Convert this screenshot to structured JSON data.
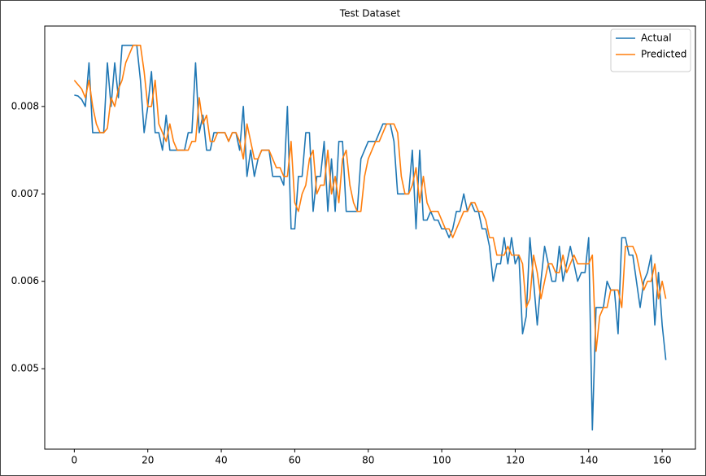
{
  "chart_data": {
    "type": "line",
    "title": "Test Dataset",
    "x": [
      0,
      1,
      2,
      3,
      4,
      5,
      6,
      7,
      8,
      9,
      10,
      11,
      12,
      13,
      14,
      15,
      16,
      17,
      18,
      19,
      20,
      21,
      22,
      23,
      24,
      25,
      26,
      27,
      28,
      29,
      30,
      31,
      32,
      33,
      34,
      35,
      36,
      37,
      38,
      39,
      40,
      41,
      42,
      43,
      44,
      45,
      46,
      47,
      48,
      49,
      50,
      51,
      52,
      53,
      54,
      55,
      56,
      57,
      58,
      59,
      60,
      61,
      62,
      63,
      64,
      65,
      66,
      67,
      68,
      69,
      70,
      71,
      72,
      73,
      74,
      75,
      76,
      77,
      78,
      79,
      80,
      81,
      82,
      83,
      84,
      85,
      86,
      87,
      88,
      89,
      90,
      91,
      92,
      93,
      94,
      95,
      96,
      97,
      98,
      99,
      100,
      101,
      102,
      103,
      104,
      105,
      106,
      107,
      108,
      109,
      110,
      111,
      112,
      113,
      114,
      115,
      116,
      117,
      118,
      119,
      120,
      121,
      122,
      123,
      124,
      125,
      126,
      127,
      128,
      129,
      130,
      131,
      132,
      133,
      134,
      135,
      136,
      137,
      138,
      139,
      140,
      141,
      142,
      143,
      144,
      145,
      146,
      147,
      148,
      149,
      150,
      151,
      152,
      153,
      154,
      155,
      156,
      157,
      158,
      159,
      160,
      161
    ],
    "series": [
      {
        "name": "Actual",
        "color": "#1f77b4",
        "values": [
          0.00813,
          0.00812,
          0.00808,
          0.008,
          0.0085,
          0.0077,
          0.0077,
          0.0077,
          0.0077,
          0.0085,
          0.008,
          0.0085,
          0.0081,
          0.0087,
          0.0087,
          0.0087,
          0.0087,
          0.0087,
          0.0083,
          0.0077,
          0.008,
          0.0084,
          0.0077,
          0.0077,
          0.0075,
          0.0079,
          0.0075,
          0.0075,
          0.0075,
          0.0075,
          0.0075,
          0.0077,
          0.0077,
          0.0085,
          0.0077,
          0.0079,
          0.0075,
          0.0075,
          0.0077,
          0.0077,
          0.0077,
          0.0077,
          0.0076,
          0.0077,
          0.0077,
          0.0075,
          0.008,
          0.0072,
          0.0075,
          0.0072,
          0.0074,
          0.0075,
          0.0075,
          0.0075,
          0.0072,
          0.0072,
          0.0072,
          0.0071,
          0.008,
          0.0066,
          0.0066,
          0.0072,
          0.0072,
          0.0077,
          0.0077,
          0.0068,
          0.0072,
          0.0072,
          0.0076,
          0.0068,
          0.0074,
          0.0068,
          0.0076,
          0.0076,
          0.0068,
          0.0068,
          0.0068,
          0.0068,
          0.0074,
          0.0075,
          0.0076,
          0.0076,
          0.0076,
          0.0077,
          0.0078,
          0.0078,
          0.0078,
          0.0076,
          0.007,
          0.007,
          0.007,
          0.007,
          0.0075,
          0.0066,
          0.0075,
          0.0067,
          0.0067,
          0.0068,
          0.0067,
          0.0067,
          0.0066,
          0.0066,
          0.0065,
          0.0066,
          0.0068,
          0.0068,
          0.007,
          0.0068,
          0.0069,
          0.0068,
          0.0068,
          0.0066,
          0.0066,
          0.0064,
          0.006,
          0.0062,
          0.0062,
          0.0065,
          0.0062,
          0.0065,
          0.0062,
          0.0063,
          0.0054,
          0.0056,
          0.0065,
          0.006,
          0.0055,
          0.006,
          0.0064,
          0.0062,
          0.006,
          0.006,
          0.0064,
          0.006,
          0.0062,
          0.0064,
          0.0062,
          0.006,
          0.0061,
          0.0061,
          0.0065,
          0.0043,
          0.0057,
          0.0057,
          0.0057,
          0.006,
          0.0059,
          0.0059,
          0.0054,
          0.0065,
          0.0065,
          0.0063,
          0.0063,
          0.006,
          0.0057,
          0.006,
          0.0061,
          0.0063,
          0.0055,
          0.0061,
          0.0055,
          0.0051
        ]
      },
      {
        "name": "Predicted",
        "color": "#ff7f0e",
        "values": [
          0.0083,
          0.00825,
          0.0082,
          0.0081,
          0.0083,
          0.008,
          0.0078,
          0.0077,
          0.0077,
          0.00775,
          0.0081,
          0.008,
          0.0082,
          0.0083,
          0.0085,
          0.0086,
          0.0087,
          0.0087,
          0.0087,
          0.0084,
          0.008,
          0.008,
          0.0083,
          0.0078,
          0.0077,
          0.0076,
          0.0078,
          0.0076,
          0.0075,
          0.0075,
          0.0075,
          0.0075,
          0.0076,
          0.0076,
          0.0081,
          0.0078,
          0.0079,
          0.0076,
          0.0076,
          0.0077,
          0.0077,
          0.0077,
          0.0076,
          0.0077,
          0.0077,
          0.0076,
          0.0074,
          0.0078,
          0.0076,
          0.0074,
          0.0074,
          0.0075,
          0.0075,
          0.0075,
          0.0074,
          0.0073,
          0.0073,
          0.0072,
          0.0072,
          0.0076,
          0.0069,
          0.0068,
          0.007,
          0.0071,
          0.0074,
          0.0075,
          0.007,
          0.0071,
          0.0071,
          0.0075,
          0.007,
          0.0072,
          0.0069,
          0.0074,
          0.0075,
          0.0071,
          0.0069,
          0.0068,
          0.0068,
          0.0072,
          0.0074,
          0.0075,
          0.0076,
          0.0076,
          0.0077,
          0.0078,
          0.0078,
          0.0078,
          0.0077,
          0.0072,
          0.007,
          0.007,
          0.0071,
          0.0073,
          0.0069,
          0.0072,
          0.0069,
          0.0068,
          0.0068,
          0.0068,
          0.0067,
          0.0066,
          0.0066,
          0.0065,
          0.0066,
          0.0067,
          0.0068,
          0.0068,
          0.0069,
          0.0069,
          0.0068,
          0.0068,
          0.0067,
          0.0065,
          0.0065,
          0.0063,
          0.0063,
          0.0063,
          0.0064,
          0.0063,
          0.0063,
          0.0063,
          0.0062,
          0.0057,
          0.0058,
          0.0063,
          0.0061,
          0.0058,
          0.006,
          0.0062,
          0.0062,
          0.0061,
          0.0061,
          0.0063,
          0.0061,
          0.0062,
          0.0063,
          0.0062,
          0.0062,
          0.0062,
          0.0062,
          0.0063,
          0.0052,
          0.0056,
          0.0057,
          0.0057,
          0.0059,
          0.0059,
          0.0059,
          0.0057,
          0.0064,
          0.0064,
          0.0064,
          0.0063,
          0.0061,
          0.0059,
          0.006,
          0.006,
          0.0062,
          0.0058,
          0.006,
          0.0058
        ]
      }
    ],
    "xlim": [
      -8.05,
      169.05
    ],
    "xticks": [
      0,
      20,
      40,
      60,
      80,
      100,
      120,
      140,
      160
    ],
    "ylim": [
      0.00408,
      0.00892
    ],
    "yticks": [
      0.005,
      0.006,
      0.007,
      0.008
    ],
    "grid": false,
    "legend": "upper right"
  }
}
